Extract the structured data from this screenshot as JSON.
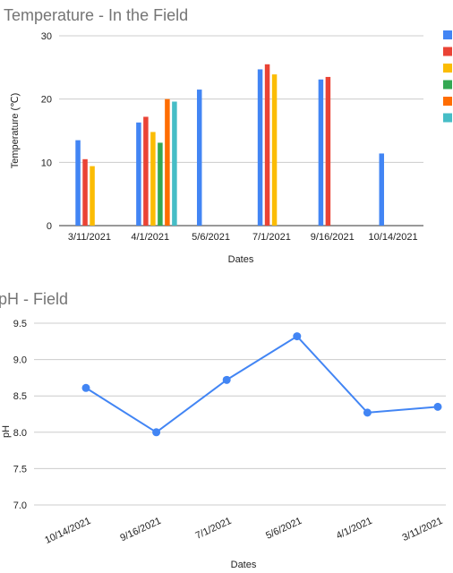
{
  "chart_data": [
    {
      "type": "bar",
      "title": "Temperature - In the Field",
      "xlabel": "Dates",
      "ylabel": "Temperature (℃)",
      "ylim": [
        0,
        30
      ],
      "yticks": [
        0,
        10,
        20,
        30
      ],
      "grid": true,
      "legend": "right",
      "categories": [
        "3/11/2021",
        "4/1/2021",
        "5/6/2021",
        "7/1/2021",
        "9/16/2021",
        "10/14/2021"
      ],
      "series": [
        {
          "color": "#4285f4",
          "values": [
            13.5,
            16.3,
            21.5,
            24.7,
            23.1,
            11.4
          ]
        },
        {
          "color": "#ea4335",
          "values": [
            10.5,
            17.2,
            null,
            25.5,
            23.5,
            null
          ]
        },
        {
          "color": "#fbbc04",
          "values": [
            9.4,
            14.8,
            null,
            23.9,
            null,
            null
          ]
        },
        {
          "color": "#34a853",
          "values": [
            null,
            13.1,
            null,
            null,
            null,
            null
          ]
        },
        {
          "color": "#ff6d01",
          "values": [
            null,
            20.0,
            null,
            null,
            null,
            null
          ]
        },
        {
          "color": "#46bdc6",
          "values": [
            null,
            19.6,
            null,
            null,
            null,
            null
          ]
        }
      ]
    },
    {
      "type": "line",
      "title": "pH - Field",
      "xlabel": "Dates",
      "ylabel": "pH",
      "ylim": [
        7.0,
        9.5
      ],
      "yticks": [
        "7.0",
        "7.5",
        "8.0",
        "8.5",
        "9.0",
        "9.5"
      ],
      "grid": true,
      "categories": [
        "10/14/2021",
        "9/16/2021",
        "7/1/2021",
        "5/6/2021",
        "4/1/2021",
        "3/11/2021"
      ],
      "series": [
        {
          "color": "#4285f4",
          "values": [
            8.61,
            8.0,
            8.72,
            9.32,
            8.27,
            8.35
          ]
        }
      ]
    }
  ]
}
